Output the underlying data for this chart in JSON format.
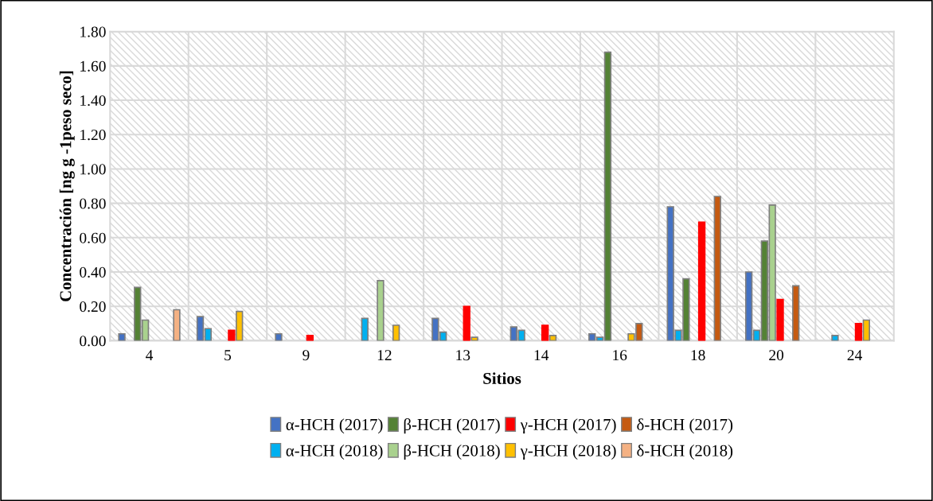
{
  "chart_data": {
    "type": "bar",
    "xlabel": "Sitios",
    "ylabel": "Concentración [ng g -1peso seco]",
    "categories": [
      "4",
      "5",
      "9",
      "12",
      "13",
      "14",
      "16",
      "18",
      "20",
      "24"
    ],
    "series": [
      {
        "name": "α-HCH (2017)",
        "color": "#4472c4",
        "values": [
          0.04,
          0.14,
          0.04,
          null,
          0.13,
          0.08,
          0.04,
          0.78,
          0.4,
          null
        ]
      },
      {
        "name": "α-HCH (2018)",
        "color": "#00b0f0",
        "values": [
          null,
          0.07,
          null,
          0.13,
          0.05,
          0.06,
          0.02,
          0.06,
          0.06,
          0.03
        ]
      },
      {
        "name": "β-HCH (2017)",
        "color": "#548235",
        "values": [
          0.31,
          null,
          null,
          null,
          null,
          null,
          1.68,
          0.36,
          0.58,
          null
        ]
      },
      {
        "name": "β-HCH (2018)",
        "color": "#a9d18e",
        "values": [
          0.12,
          null,
          null,
          0.35,
          null,
          null,
          null,
          null,
          0.79,
          null
        ]
      },
      {
        "name": "γ-HCH (2017)",
        "color": "#ff0000",
        "values": [
          null,
          0.06,
          0.03,
          null,
          0.2,
          0.09,
          null,
          0.69,
          0.24,
          0.1
        ]
      },
      {
        "name": "γ-HCH (2018)",
        "color": "#ffc000",
        "values": [
          null,
          0.17,
          null,
          0.09,
          0.02,
          0.03,
          0.04,
          null,
          null,
          0.12
        ]
      },
      {
        "name": "δ-HCH (2017)",
        "color": "#c55a11",
        "values": [
          null,
          null,
          null,
          null,
          null,
          null,
          0.1,
          0.84,
          0.32,
          null
        ]
      },
      {
        "name": "δ-HCH (2018)",
        "color": "#f4b183",
        "values": [
          0.18,
          null,
          null,
          null,
          null,
          null,
          null,
          null,
          null,
          null
        ]
      }
    ],
    "ylim": [
      0,
      1.8
    ],
    "yticks": [
      {
        "value": 0,
        "label": "0.00"
      },
      {
        "value": 0.2,
        "label": "0.20"
      },
      {
        "value": 0.4,
        "label": "0.40"
      },
      {
        "value": 0.6,
        "label": "0.60"
      },
      {
        "value": 0.8,
        "label": "0.80"
      },
      {
        "value": 1.0,
        "label": "1.00"
      },
      {
        "value": 1.2,
        "label": "1.20"
      },
      {
        "value": 1.4,
        "label": "1.40"
      },
      {
        "value": 1.6,
        "label": "1.60"
      },
      {
        "value": 1.8,
        "label": "1.80"
      }
    ],
    "grid": true,
    "legend": "bottom"
  }
}
